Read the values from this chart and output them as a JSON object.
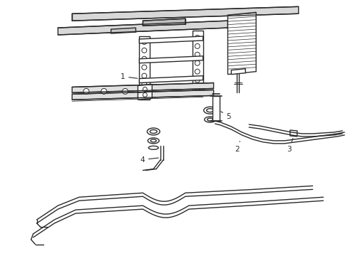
{
  "bg_color": "#ffffff",
  "line_color": "#2a2a2a",
  "line_width": 1.0,
  "label_fontsize": 7.5,
  "fig_width": 4.89,
  "fig_height": 3.6,
  "dpi": 100
}
